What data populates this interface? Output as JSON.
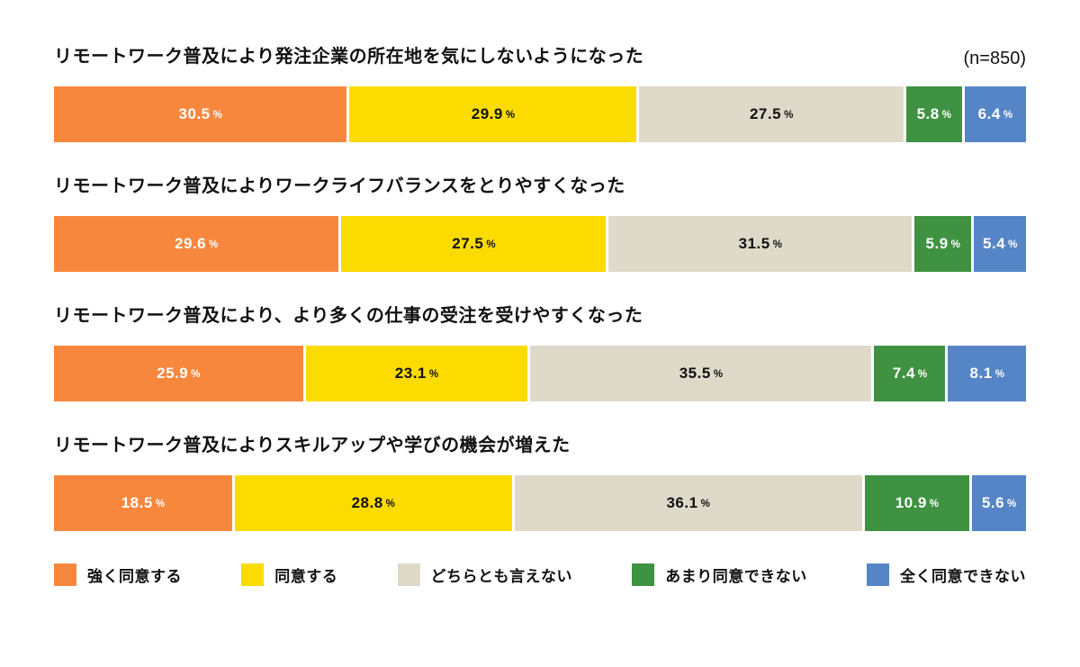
{
  "page": {
    "sample_size_label": "(n=850)",
    "percent_sign": "%"
  },
  "chart_data": {
    "type": "bar",
    "orientation": "horizontal",
    "stacked": true,
    "unit": "percent",
    "sample_size": 850,
    "xlim": [
      0,
      100
    ],
    "value_labels": "inside",
    "legend_position": "bottom",
    "grid": false,
    "categories": [
      "リモートワーク普及により発注企業の所在地を気にしないようになった",
      "リモートワーク普及によりワークライフバランスをとりやすくなった",
      "リモートワーク普及により、より多くの仕事の受注を受けやすくなった",
      "リモートワーク普及によりスキルアップや学びの機会が増えた"
    ],
    "series": [
      {
        "key": "strongly-agree",
        "name": "強く同意する",
        "color": "#F7873D",
        "label_color": "#FFFFFF",
        "values": [
          30.5,
          29.6,
          25.9,
          18.5
        ]
      },
      {
        "key": "agree",
        "name": "同意する",
        "color": "#FBDB00",
        "label_color": "#111111",
        "values": [
          29.9,
          27.5,
          23.1,
          28.8
        ]
      },
      {
        "key": "neutral",
        "name": "どちらとも言えない",
        "color": "#DED9C9",
        "label_color": "#111111",
        "values": [
          27.5,
          31.5,
          35.5,
          36.1
        ]
      },
      {
        "key": "somewhat-disagree",
        "name": "あまり同意できない",
        "color": "#3F9242",
        "label_color": "#FFFFFF",
        "values": [
          5.8,
          5.9,
          7.4,
          10.9
        ]
      },
      {
        "key": "strongly-disagree",
        "name": "全く同意できない",
        "color": "#5585C6",
        "label_color": "#FFFFFF",
        "values": [
          6.4,
          5.4,
          8.1,
          5.6
        ]
      }
    ]
  }
}
